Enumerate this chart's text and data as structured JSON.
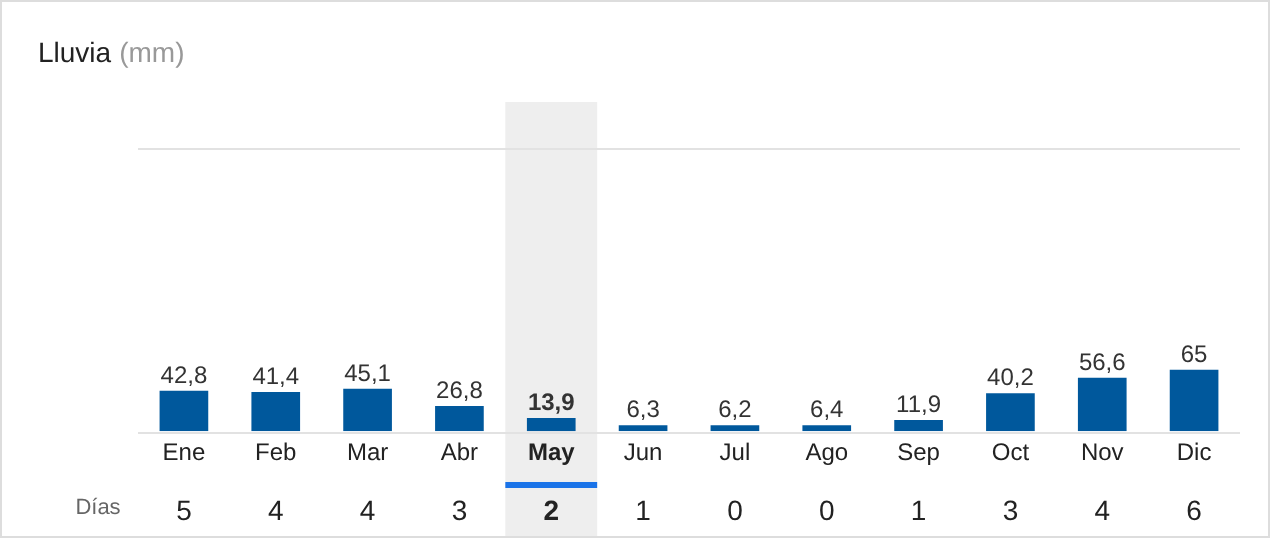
{
  "chart_data": {
    "type": "bar",
    "title": "Lluvia",
    "subtitle": "(mm)",
    "categories": [
      "Ene",
      "Feb",
      "Mar",
      "Abr",
      "May",
      "Jun",
      "Jul",
      "Ago",
      "Sep",
      "Oct",
      "Nov",
      "Dic"
    ],
    "values": [
      42.8,
      41.4,
      45.1,
      26.8,
      13.9,
      6.3,
      6.2,
      6.4,
      11.9,
      40.2,
      56.6,
      65
    ],
    "value_labels": [
      "42,8",
      "41,4",
      "45,1",
      "26,8",
      "13,9",
      "6,3",
      "6,2",
      "6,4",
      "11,9",
      "40,2",
      "56,6",
      "65"
    ],
    "color": "#00589c",
    "ylim": [
      0,
      300
    ],
    "legend": false,
    "tick_labels": "x",
    "bands": [
      {
        "axis": "x",
        "from": "May",
        "to": "May",
        "color": "#eeeeee"
      }
    ],
    "annotations": [
      "Días",
      "5",
      "4",
      "4",
      "3",
      "2",
      "1",
      "0",
      "0",
      "1",
      "3",
      "4",
      "6"
    ]
  }
}
